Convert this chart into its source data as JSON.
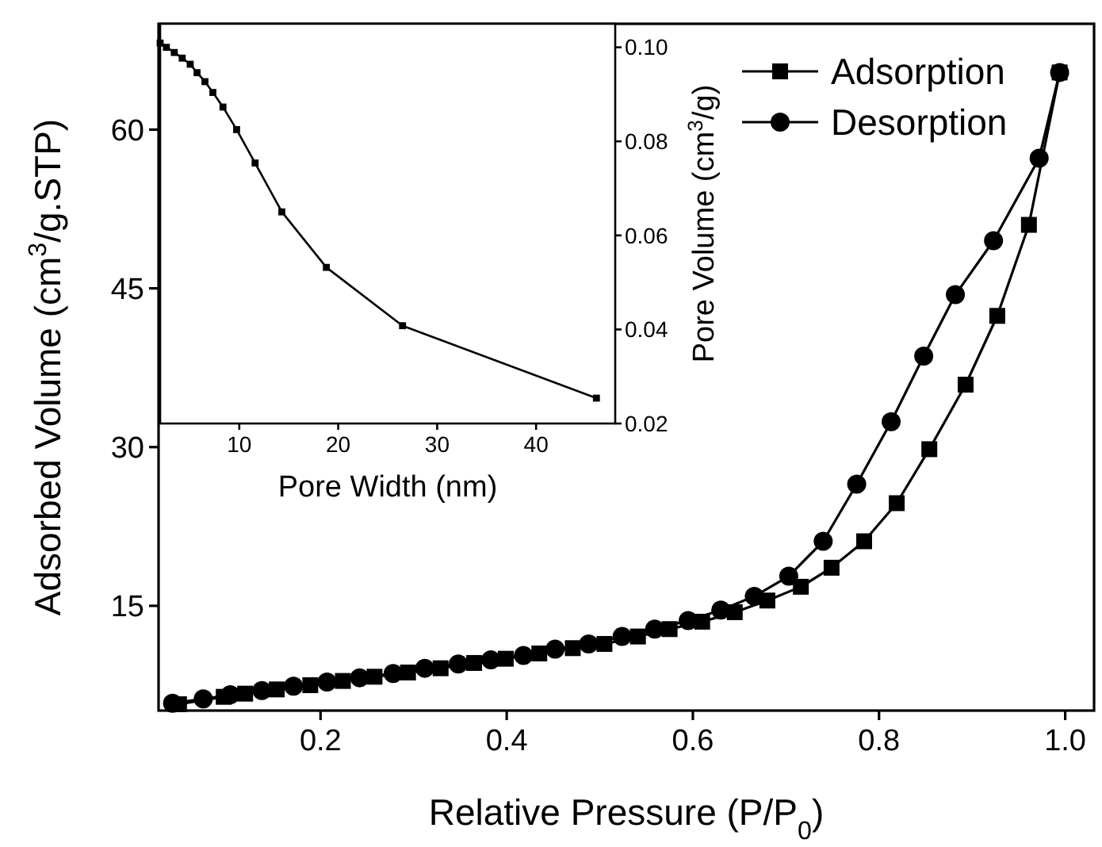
{
  "chart_data": [
    {
      "type": "line",
      "xlabel": "Relative Pressure (P/P$_{0}$)",
      "ylabel": "Adsorbed Volume (cm$^{3}$/g.STP)",
      "xlim": [
        0.026,
        1.031
      ],
      "ylim": [
        5.1,
        70
      ],
      "xticks": [
        0.2,
        0.4,
        0.6,
        0.8,
        {
          "value": 1,
          "label": "1.0"
        }
      ],
      "yticks": [
        15,
        30,
        45,
        60
      ],
      "legend": "top right",
      "grid": false,
      "line_style": "solid",
      "series": [
        {
          "name": "Adsorption",
          "color": "#000000",
          "marker": "square",
          "x": [
            0.048,
            0.096,
            0.119,
            0.153,
            0.189,
            0.224,
            0.258,
            0.294,
            0.329,
            0.365,
            0.399,
            0.435,
            0.471,
            0.505,
            0.541,
            0.575,
            0.61,
            0.645,
            0.68,
            0.716,
            0.749,
            0.784,
            0.819,
            0.854,
            0.893,
            0.927,
            0.961,
            0.994
          ],
          "values": [
            5.7,
            6.4,
            6.7,
            7.1,
            7.5,
            7.9,
            8.3,
            8.7,
            9.1,
            9.6,
            10.0,
            10.5,
            11.0,
            11.4,
            12.1,
            12.8,
            13.5,
            14.4,
            15.5,
            16.8,
            18.6,
            21.1,
            24.7,
            29.8,
            35.9,
            42.4,
            51.0,
            65.4
          ]
        },
        {
          "name": "Desorption",
          "color": "#000000",
          "marker": "circle",
          "x": [
            0.041,
            0.074,
            0.103,
            0.137,
            0.171,
            0.207,
            0.242,
            0.278,
            0.312,
            0.348,
            0.383,
            0.418,
            0.452,
            0.488,
            0.524,
            0.559,
            0.595,
            0.63,
            0.666,
            0.703,
            0.74,
            0.776,
            0.813,
            0.848,
            0.882,
            0.923,
            0.972,
            0.994
          ],
          "values": [
            5.8,
            6.2,
            6.6,
            7.0,
            7.4,
            7.8,
            8.2,
            8.6,
            9.1,
            9.5,
            9.9,
            10.3,
            10.9,
            11.4,
            12.1,
            12.8,
            13.6,
            14.6,
            15.9,
            17.8,
            21.1,
            26.5,
            32.4,
            38.6,
            44.4,
            49.5,
            57.3,
            65.4
          ]
        }
      ]
    },
    {
      "type": "line",
      "xlabel": "Pore Width (nm)",
      "y2label": "Pore Volume (cm$^{3}$/g)",
      "xlim": [
        2,
        48
      ],
      "y2lim": [
        0.02,
        0.105
      ],
      "xticks": [
        10,
        20,
        30,
        40
      ],
      "y2ticks": [
        0.02,
        0.04,
        0.06,
        0.08,
        {
          "value": 0.1,
          "label": "0.10"
        }
      ],
      "grid": false,
      "line_style": "solid",
      "series": [
        {
          "color": "#000000",
          "marker": "square",
          "axis": "y2",
          "x": [
            2.0,
            2.63,
            3.43,
            4.23,
            5.04,
            5.73,
            6.53,
            7.33,
            8.35,
            9.73,
            11.6,
            14.3,
            18.8,
            26.5,
            46.1
          ],
          "values": [
            0.1009,
            0.1,
            0.0989,
            0.0977,
            0.0964,
            0.0946,
            0.0927,
            0.0904,
            0.0873,
            0.0825,
            0.0754,
            0.065,
            0.0532,
            0.0408,
            0.0254
          ]
        }
      ]
    }
  ]
}
